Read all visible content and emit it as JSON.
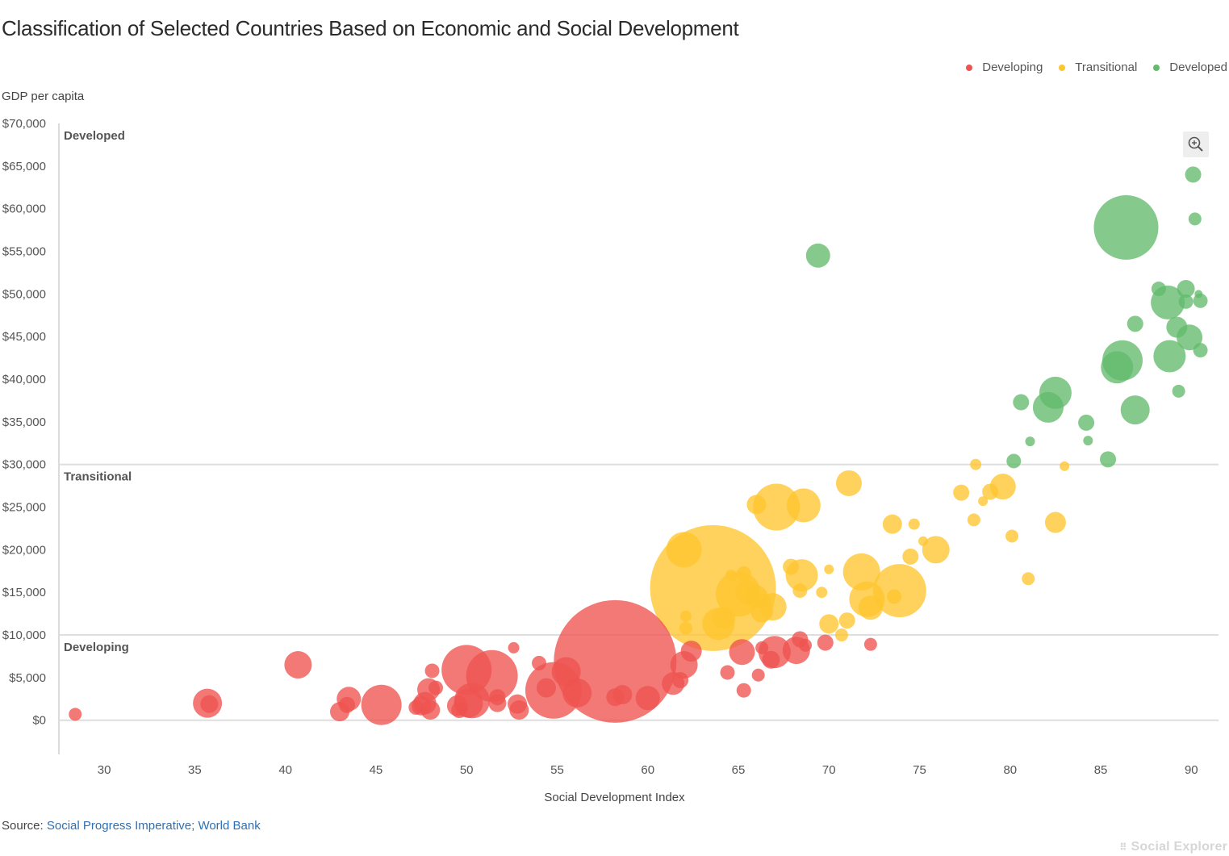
{
  "chart_data": {
    "type": "scatter",
    "title": "Classification of Selected Countries Based on Economic and Social Development",
    "xlabel": "Social Development Index",
    "ylabel": "GDP per capita",
    "xlim": [
      27.5,
      91.5
    ],
    "ylim": [
      -4000,
      70000
    ],
    "x_ticks": [
      "30",
      "35",
      "40",
      "45",
      "50",
      "55",
      "60",
      "65",
      "70",
      "75",
      "80",
      "85",
      "90"
    ],
    "x_tick_values": [
      30,
      35,
      40,
      45,
      50,
      55,
      60,
      65,
      70,
      75,
      80,
      85,
      90
    ],
    "y_ticks": [
      "$0",
      "$5,000",
      "$10,000",
      "$15,000",
      "$20,000",
      "$25,000",
      "$30,000",
      "$35,000",
      "$40,000",
      "$45,000",
      "$50,000",
      "$55,000",
      "$60,000",
      "$65,000",
      "$70,000"
    ],
    "y_tick_values": [
      0,
      5000,
      10000,
      15000,
      20000,
      25000,
      30000,
      35000,
      40000,
      45000,
      50000,
      55000,
      60000,
      65000,
      70000
    ],
    "grid": "horizontal at category thresholds",
    "legend_position": "top-right",
    "thresholds": [
      {
        "y": 0,
        "label": ""
      },
      {
        "y": 10000,
        "label": "Developing"
      },
      {
        "y": 30000,
        "label": "Transitional"
      },
      {
        "y": 70000,
        "label": "Developed"
      }
    ],
    "series": [
      {
        "name": "Developing",
        "color": "#ee5350",
        "points": [
          [
            28.4,
            700,
            8
          ],
          [
            35.7,
            2000,
            18
          ],
          [
            35.8,
            1900,
            11
          ],
          [
            40.7,
            6500,
            17
          ],
          [
            43.0,
            1000,
            12
          ],
          [
            43.5,
            2500,
            15
          ],
          [
            43.4,
            1800,
            10
          ],
          [
            45.3,
            1800,
            25
          ],
          [
            47.2,
            1500,
            9
          ],
          [
            47.5,
            1700,
            12
          ],
          [
            47.7,
            2000,
            14
          ],
          [
            47.9,
            3600,
            14
          ],
          [
            48.0,
            1200,
            12
          ],
          [
            48.1,
            5800,
            9
          ],
          [
            48.3,
            3800,
            9
          ],
          [
            49.5,
            1700,
            13
          ],
          [
            49.6,
            1200,
            10
          ],
          [
            50.0,
            5900,
            31
          ],
          [
            50.1,
            2000,
            18
          ],
          [
            50.3,
            2300,
            22
          ],
          [
            51.4,
            5200,
            32
          ],
          [
            51.7,
            2700,
            10
          ],
          [
            51.7,
            2000,
            11
          ],
          [
            52.6,
            8500,
            7
          ],
          [
            52.8,
            1900,
            12
          ],
          [
            52.9,
            1200,
            12
          ],
          [
            54.0,
            6700,
            9
          ],
          [
            54.4,
            3800,
            12
          ],
          [
            54.8,
            3500,
            35
          ],
          [
            55.5,
            5700,
            18
          ],
          [
            56.1,
            3200,
            18
          ],
          [
            58.2,
            6900,
            76
          ],
          [
            58.2,
            2700,
            11
          ],
          [
            58.6,
            3000,
            12
          ],
          [
            60.0,
            2600,
            15
          ],
          [
            61.4,
            4300,
            14
          ],
          [
            61.8,
            4700,
            10
          ],
          [
            62.0,
            6500,
            17
          ],
          [
            62.4,
            8100,
            13
          ],
          [
            64.4,
            5600,
            9
          ],
          [
            65.2,
            8000,
            16
          ],
          [
            65.3,
            3500,
            9
          ],
          [
            66.1,
            5300,
            8
          ],
          [
            66.3,
            8500,
            8
          ],
          [
            66.8,
            7100,
            11
          ],
          [
            67.0,
            8000,
            20
          ],
          [
            68.2,
            8200,
            17
          ],
          [
            68.4,
            9500,
            10
          ],
          [
            68.7,
            8800,
            8
          ],
          [
            69.8,
            9100,
            10
          ],
          [
            72.3,
            8900,
            8
          ]
        ]
      },
      {
        "name": "Transitional",
        "color": "#fec52e",
        "points": [
          [
            62.0,
            20000,
            22
          ],
          [
            62.1,
            12200,
            7
          ],
          [
            62.1,
            10800,
            8
          ],
          [
            63.6,
            15500,
            78
          ],
          [
            63.9,
            11300,
            20
          ],
          [
            64.2,
            12000,
            14
          ],
          [
            64.6,
            17000,
            7
          ],
          [
            65.0,
            14800,
            28
          ],
          [
            65.3,
            17200,
            9
          ],
          [
            65.5,
            15000,
            15
          ],
          [
            66.0,
            14500,
            14
          ],
          [
            66.3,
            12800,
            14
          ],
          [
            66.4,
            14000,
            9
          ],
          [
            66.9,
            13300,
            17
          ],
          [
            66.0,
            25300,
            12
          ],
          [
            67.1,
            25000,
            29
          ],
          [
            67.9,
            18000,
            10
          ],
          [
            68.5,
            17000,
            20
          ],
          [
            68.4,
            15200,
            9
          ],
          [
            68.6,
            25200,
            21
          ],
          [
            69.6,
            15000,
            7
          ],
          [
            70.0,
            17700,
            6
          ],
          [
            70.0,
            11300,
            12
          ],
          [
            70.7,
            10000,
            8
          ],
          [
            71.0,
            11700,
            10
          ],
          [
            71.1,
            27800,
            16
          ],
          [
            71.8,
            17400,
            23
          ],
          [
            72.1,
            14200,
            22
          ],
          [
            72.3,
            13200,
            15
          ],
          [
            73.5,
            23000,
            12
          ],
          [
            73.6,
            14500,
            9
          ],
          [
            73.9,
            15200,
            33
          ],
          [
            74.5,
            19200,
            10
          ],
          [
            74.7,
            23000,
            7
          ],
          [
            75.2,
            21000,
            6
          ],
          [
            75.9,
            20000,
            17
          ],
          [
            77.3,
            26700,
            10
          ],
          [
            78.0,
            23500,
            8
          ],
          [
            78.1,
            30000,
            7
          ],
          [
            78.5,
            25700,
            6
          ],
          [
            78.9,
            26800,
            10
          ],
          [
            79.6,
            27400,
            16
          ],
          [
            80.1,
            21600,
            8
          ],
          [
            81.0,
            16600,
            8
          ],
          [
            82.5,
            23200,
            13
          ],
          [
            83.0,
            29800,
            6
          ]
        ]
      },
      {
        "name": "Developed",
        "color": "#63bb6b",
        "points": [
          [
            69.4,
            54500,
            15
          ],
          [
            80.2,
            30400,
            9
          ],
          [
            80.6,
            37300,
            10
          ],
          [
            81.1,
            32700,
            6
          ],
          [
            82.1,
            36700,
            19
          ],
          [
            82.5,
            38400,
            20
          ],
          [
            84.2,
            34900,
            10
          ],
          [
            84.3,
            32800,
            6
          ],
          [
            85.4,
            30600,
            10
          ],
          [
            85.9,
            41400,
            20
          ],
          [
            86.2,
            42200,
            25
          ],
          [
            86.4,
            57800,
            40
          ],
          [
            86.9,
            46500,
            10
          ],
          [
            86.9,
            36400,
            18
          ],
          [
            88.2,
            50600,
            9
          ],
          [
            88.7,
            49000,
            21
          ],
          [
            88.8,
            42700,
            20
          ],
          [
            89.3,
            38600,
            8
          ],
          [
            89.2,
            46100,
            13
          ],
          [
            89.7,
            50600,
            11
          ],
          [
            89.9,
            44900,
            16
          ],
          [
            89.7,
            49100,
            9
          ],
          [
            90.1,
            64000,
            10
          ],
          [
            90.2,
            58800,
            8
          ],
          [
            90.4,
            50000,
            5
          ],
          [
            90.5,
            49200,
            9
          ],
          [
            90.5,
            43400,
            9
          ]
        ]
      }
    ]
  },
  "legend": {
    "items": [
      {
        "label": "Developing",
        "color": "#ee5350"
      },
      {
        "label": "Transitional",
        "color": "#fec52e"
      },
      {
        "label": "Developed",
        "color": "#63bb6b"
      }
    ]
  },
  "source": {
    "prefix": "Source:",
    "link_text": "Social Progress Imperative; World Bank"
  },
  "branding": {
    "label": "Social Explorer"
  },
  "zoom": {
    "icon": "zoom-in-icon"
  }
}
